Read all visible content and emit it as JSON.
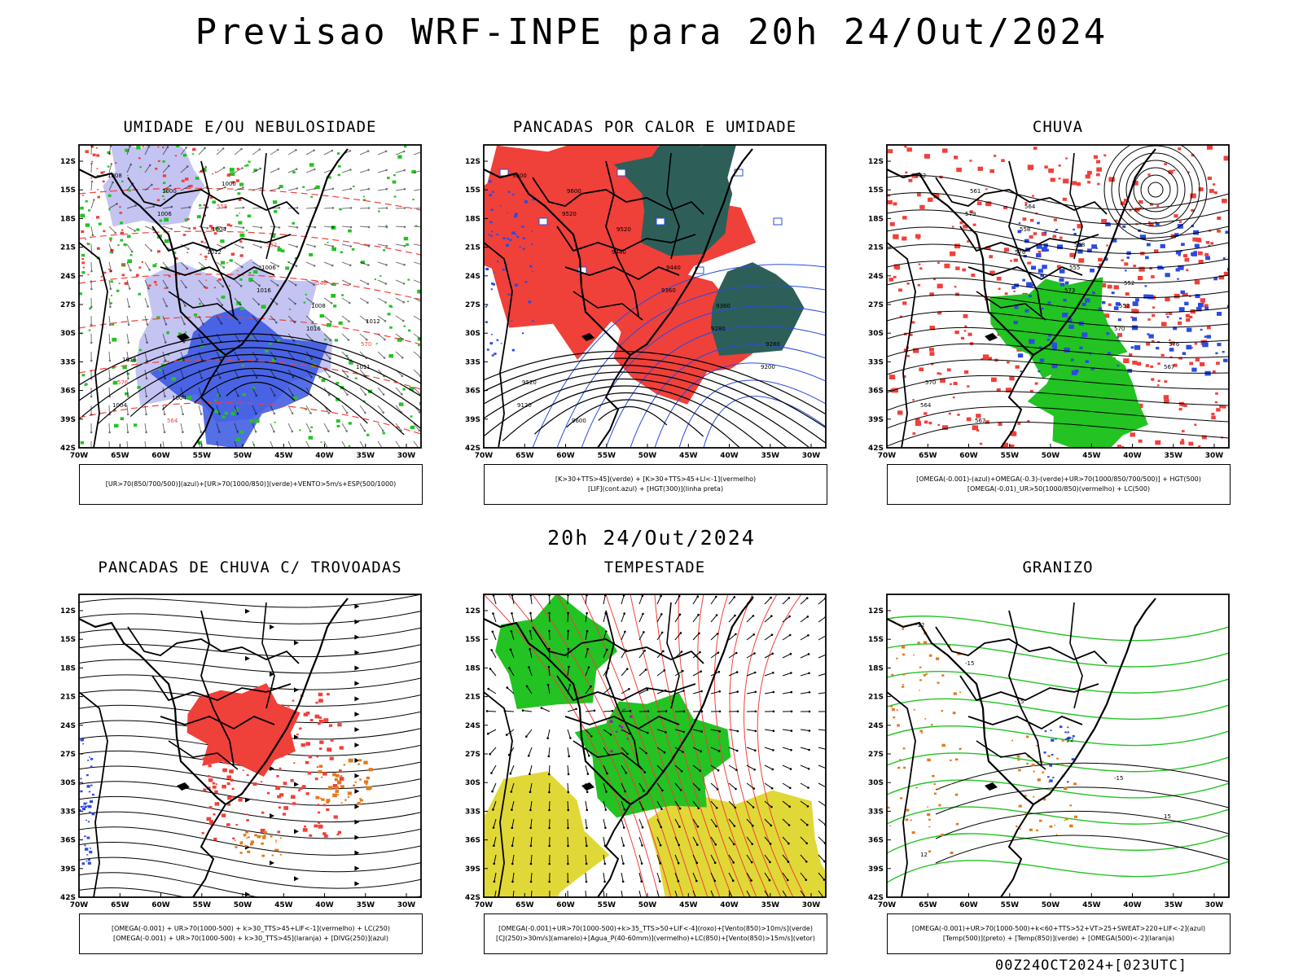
{
  "title": "Previsao WRF-INPE  para 20h 24/Out/2024",
  "mid_title": "20h 24/Out/2024",
  "footer": "00Z24OCT2024+[023UTC]",
  "axes": {
    "lat_labels": [
      "12S",
      "15S",
      "18S",
      "21S",
      "24S",
      "27S",
      "30S",
      "33S",
      "36S",
      "39S",
      "42S"
    ],
    "lon_labels": [
      "70W",
      "65W",
      "60W",
      "55W",
      "50W",
      "45W",
      "40W",
      "35W",
      "30W"
    ]
  },
  "colors": {
    "red": "#f0403a",
    "blue": "#2b4be0",
    "green": "#22c322",
    "lavender": "#c4c4f2",
    "darkgreen": "#2d5f58",
    "yellow": "#e0d836",
    "orange": "#e07a1e",
    "purple": "#8a1fb0"
  },
  "panels": [
    {
      "title": "UMIDADE E/OU NEBULOSIDADE",
      "legend": [
        "[UR>70(850/700/500)](azul)+[UR>70(1000/850)](verde)+VENTO>5m/s+ESP(500/1000)"
      ],
      "labels": [
        "1008",
        "1006",
        "1012",
        "1016",
        "1016",
        "1011",
        "1004",
        "1000",
        "1004",
        "1006",
        "1008",
        "570",
        "576",
        "564",
        "558",
        "552",
        "546",
        "1012",
        "1016",
        "1004",
        "1000"
      ]
    },
    {
      "title": "PANCADAS POR CALOR E UMIDADE",
      "legend": [
        "[K>30+TTS>45](verde) + [K>30+TTS>45+LI<-1](vermelho)",
        "[LIF](cont.azul) + [HGT(300)](linha preta)"
      ],
      "labels": [
        "9600",
        "9520",
        "9440",
        "9360",
        "9280",
        "9200",
        "9120",
        "9600",
        "9520",
        "9440",
        "9360",
        "9280",
        "9520",
        "9600"
      ]
    },
    {
      "title": "CHUVA",
      "legend": [
        "[OMEGA(-0.001)-(azul)+OMEGA(-0.3)-(verde)+UR>70(1000/850/700/500)] + HGT(500)",
        "[OMEGA(-0.01)_UR>50(1000/850)(vermelho) + LC(500)"
      ],
      "labels": [
        "582",
        "579",
        "576",
        "573",
        "570",
        "567",
        "564",
        "561",
        "558",
        "555",
        "552",
        "576",
        "570",
        "567",
        "564",
        "558",
        "552"
      ]
    },
    {
      "title": "PANCADAS DE CHUVA C/ TROVOADAS",
      "legend": [
        "[OMEGA(-0.001) + UR>70(1000-500) + k>30_TTS>45+LIF<-1](vermelho) + LC(250)",
        "[OMEGA(-0.001) + UR>70(1000-500) + k>30_TTS>45](laranja) + [DIVG(250)](azul)"
      ],
      "labels": []
    },
    {
      "title": "TEMPESTADE",
      "legend": [
        "[OMEGA(-0.001)+UR>70(1000-500)+k>35_TTS>50+LIF<-4](roxo)+[Vento(850)>10m/s](verde)",
        "[CJ(250)>30m/s](amarelo)+[Agua_P(40-60mm)](vermelho)+LC(850)+[Vento(850)>15m/s](vetor)"
      ],
      "labels": []
    },
    {
      "title": "GRANIZO",
      "legend": [
        "[OMEGA(-0.001)+UR>70(1000-500)+k<60+TTS>52+VT>25+SWEAT>220+LIF<-2](azul)",
        "[Temp(500)](preto) + [Temp(850)](verde) + [OMEGA(500)<-2](laranja)"
      ],
      "labels": [
        "-12",
        "-15",
        "-15",
        "-12",
        "-15",
        "15",
        "12"
      ]
    }
  ]
}
